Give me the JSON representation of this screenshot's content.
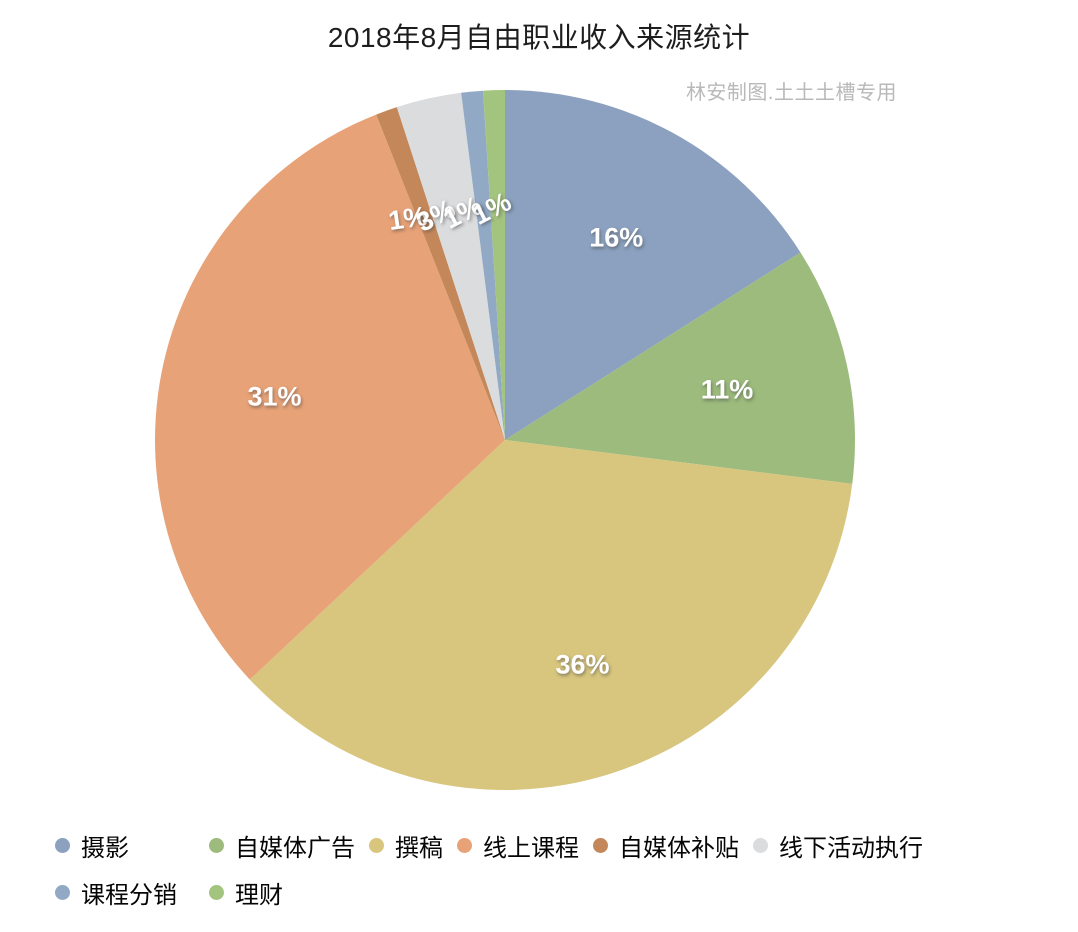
{
  "title": "2018年8月自由职业收入来源统计",
  "watermark": "林安制图.土土土槽专用",
  "chart_data": {
    "type": "pie",
    "title": "2018年8月自由职业收入来源统计",
    "categories": [
      "摄影",
      "自媒体广告",
      "撰稿",
      "线上课程",
      "自媒体补贴",
      "线下活动执行",
      "课程分销",
      "理财"
    ],
    "values": [
      16,
      11,
      36,
      31,
      1,
      3,
      1,
      1
    ],
    "percent_labels": [
      "16%",
      "11%",
      "36%",
      "31%",
      "1%",
      "3%",
      "1%",
      "1%"
    ],
    "unit": "%",
    "colors": [
      "#8BA1BF",
      "#9CBB7C",
      "#D8C67E",
      "#E8A277",
      "#C4875A",
      "#DBDCDD",
      "#92A9C6",
      "#A3C47E"
    ],
    "start_angle_deg": 0,
    "direction": "clockwise",
    "legend_position": "bottom",
    "label_text_color": "#ffffff"
  }
}
